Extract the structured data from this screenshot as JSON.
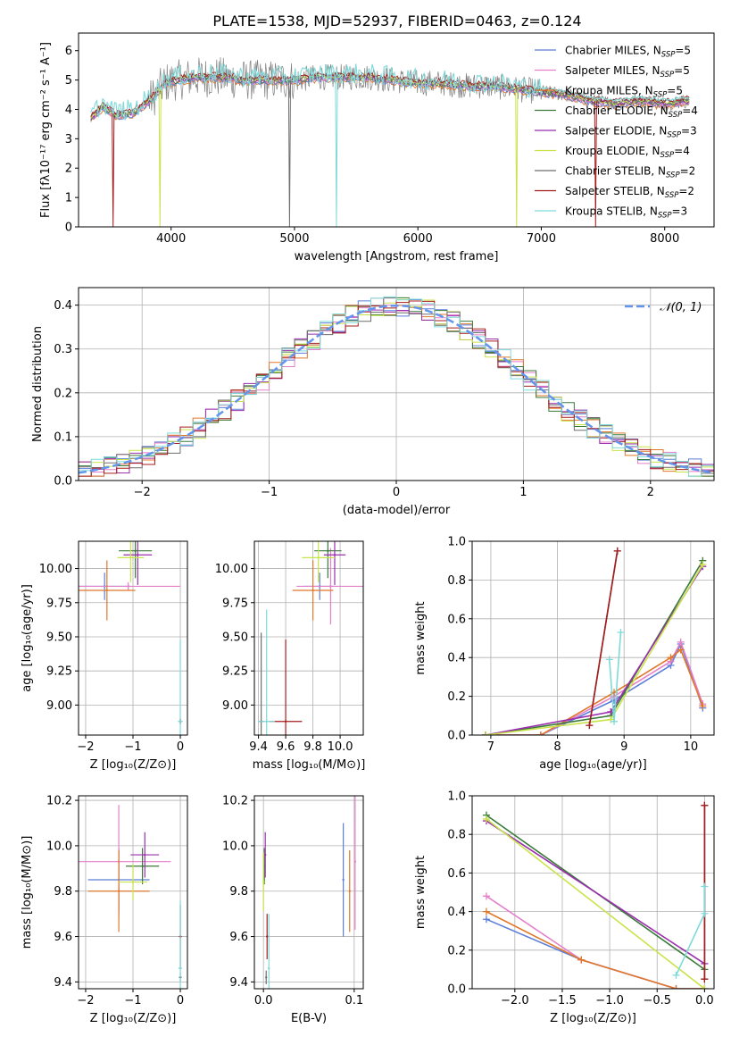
{
  "figure_title": "PLATE=1538, MJD=52937, FIBERID=0463, z=0.124",
  "colors": {
    "Chabrier MILES": "#5b7fd8",
    "Salpeter MILES": "#e57fc9",
    "Kroupa MILES": "#e0782b",
    "Chabrier ELODIE": "#3a7a3a",
    "Salpeter ELODIE": "#9b2fae",
    "Kroupa ELODIE": "#c9e34a",
    "Chabrier STELIB": "#6e6e6e",
    "Salpeter STELIB": "#a51c1c",
    "Kroupa STELIB": "#7fd9d9",
    "gauss": "#6495ed"
  },
  "chart_data": [
    {
      "id": "spectrum",
      "type": "line",
      "xlabel": "wavelength [Angstrom, rest frame]",
      "ylabel": "Flux [fλ10⁻¹⁷ erg cm⁻² s⁻¹ A⁻¹]",
      "xlim": [
        3250,
        8400
      ],
      "ylim": [
        0,
        6.6
      ],
      "xticks": [
        4000,
        5000,
        6000,
        7000,
        8000
      ],
      "yticks": [
        0,
        1,
        2,
        3,
        4,
        5,
        6
      ],
      "grid": false,
      "legend_position": "right",
      "legend": [
        {
          "label": "Chabrier MILES, N",
          "sub": "SSP",
          "n": "=5",
          "model": "Chabrier MILES"
        },
        {
          "label": "Salpeter MILES, N",
          "sub": "SSP",
          "n": "=5",
          "model": "Salpeter MILES"
        },
        {
          "label": "Kroupa MILES, N",
          "sub": "SSP",
          "n": "=5",
          "model": "Kroupa MILES"
        },
        {
          "label": "Chabrier ELODIE, N",
          "sub": "SSP",
          "n": "=4",
          "model": "Chabrier ELODIE"
        },
        {
          "label": "Salpeter ELODIE, N",
          "sub": "SSP",
          "n": "=3",
          "model": "Salpeter ELODIE"
        },
        {
          "label": "Kroupa ELODIE, N",
          "sub": "SSP",
          "n": "=4",
          "model": "Kroupa ELODIE"
        },
        {
          "label": "Chabrier STELIB, N",
          "sub": "SSP",
          "n": "=2",
          "model": "Chabrier STELIB"
        },
        {
          "label": "Salpeter STELIB, N",
          "sub": "SSP",
          "n": "=2",
          "model": "Salpeter STELIB"
        },
        {
          "label": "Kroupa STELIB, N",
          "sub": "SSP",
          "n": "=3",
          "model": "Kroupa STELIB"
        }
      ],
      "continuum": {
        "x": [
          3350,
          3450,
          3550,
          3700,
          3850,
          3950,
          4050,
          4200,
          4400,
          4600,
          4800,
          5000,
          5200,
          5400,
          5600,
          5800,
          6000,
          6200,
          6400,
          6600,
          6800,
          7000,
          7200,
          7400,
          7600,
          7800,
          8000,
          8200
        ],
        "y": [
          3.7,
          4.1,
          3.8,
          3.9,
          4.4,
          4.9,
          5.0,
          5.1,
          5.1,
          5.0,
          5.0,
          5.0,
          5.1,
          5.1,
          5.1,
          5.0,
          4.9,
          4.9,
          4.8,
          4.8,
          4.7,
          4.6,
          4.5,
          4.3,
          4.2,
          4.3,
          4.2,
          4.3
        ]
      },
      "dips": [
        {
          "x": 3530,
          "model": "Salpeter STELIB"
        },
        {
          "x": 3910,
          "model": "Kroupa ELODIE"
        },
        {
          "x": 4960,
          "model": "Chabrier STELIB"
        },
        {
          "x": 5340,
          "model": "Kroupa STELIB"
        },
        {
          "x": 6800,
          "model": "Kroupa ELODIE"
        },
        {
          "x": 7440,
          "model": "Salpeter STELIB"
        }
      ]
    },
    {
      "id": "residual-histogram",
      "type": "histogram",
      "xlabel": "(data-model)/error",
      "ylabel": "Normed distribution",
      "xlim": [
        -2.5,
        2.5
      ],
      "ylim": [
        0,
        0.44
      ],
      "xticks": [
        -2,
        -1,
        0,
        1,
        2
      ],
      "yticks": [
        0.0,
        0.1,
        0.2,
        0.3,
        0.4
      ],
      "grid": true,
      "legend_label": "𝒩(0, 1)",
      "legend_position": "top-right",
      "series_models": [
        "Chabrier MILES",
        "Salpeter MILES",
        "Kroupa MILES",
        "Chabrier ELODIE",
        "Salpeter ELODIE",
        "Kroupa ELODIE",
        "Chabrier STELIB",
        "Salpeter STELIB",
        "Kroupa STELIB"
      ]
    },
    {
      "id": "age-vs-Z",
      "type": "scatter",
      "xlabel": "Z [log₁₀(Z/Z⊙)]",
      "ylabel": "age  [log₁₀(age/yr)]",
      "xlim": [
        -2.15,
        0.15
      ],
      "ylim": [
        8.78,
        10.2
      ],
      "xticks": [
        -2,
        -1,
        0
      ],
      "yticks": [
        9.0,
        9.25,
        9.5,
        9.75,
        10.0
      ],
      "grid": true,
      "points": [
        {
          "model": "Chabrier MILES",
          "x": -1.6,
          "y": 9.87,
          "xerr": 0.55,
          "yerr": 0.1
        },
        {
          "model": "Salpeter MILES",
          "x": -1.1,
          "y": 9.87,
          "xerr": 1.1,
          "yerr": 0.03
        },
        {
          "model": "Kroupa MILES",
          "x": -1.55,
          "y": 9.84,
          "xerr": 0.6,
          "yerr": 0.22
        },
        {
          "model": "Chabrier ELODIE",
          "x": -0.95,
          "y": 10.13,
          "xerr": 0.35,
          "yerr": 0.2
        },
        {
          "model": "Salpeter ELODIE",
          "x": -0.9,
          "y": 10.1,
          "xerr": 0.3,
          "yerr": 0.22
        },
        {
          "model": "Kroupa ELODIE",
          "x": -1.05,
          "y": 10.08,
          "xerr": 0.28,
          "yerr": 0.18
        },
        {
          "model": "Chabrier STELIB",
          "x": 0.0,
          "y": 8.88,
          "xerr": 0.03,
          "yerr": 0.02
        },
        {
          "model": "Salpeter STELIB",
          "x": 0.0,
          "y": 8.88,
          "xerr": 0.03,
          "yerr": 0.02
        },
        {
          "model": "Kroupa STELIB",
          "x": 0.0,
          "y": 8.88,
          "xerr": 0.05,
          "yerr": 0.6
        }
      ]
    },
    {
      "id": "age-vs-mass",
      "type": "scatter",
      "xlabel": "mass [log₁₀(M/M⊙)]",
      "ylabel": "",
      "xlim": [
        9.37,
        10.17
      ],
      "ylim": [
        8.78,
        10.2
      ],
      "xticks": [
        9.4,
        9.6,
        9.8,
        10.0
      ],
      "yticks": [
        9.0,
        9.25,
        9.5,
        9.75,
        10.0
      ],
      "grid": true,
      "points": [
        {
          "model": "Chabrier MILES",
          "x": 9.85,
          "y": 9.87,
          "xerr": 0.12,
          "yerr": 0.1
        },
        {
          "model": "Salpeter MILES",
          "x": 9.93,
          "y": 9.87,
          "xerr": 0.25,
          "yerr": 0.28
        },
        {
          "model": "Kroupa MILES",
          "x": 9.8,
          "y": 9.84,
          "xerr": 0.15,
          "yerr": 0.22
        },
        {
          "model": "Chabrier ELODIE",
          "x": 9.91,
          "y": 10.13,
          "xerr": 0.1,
          "yerr": 0.2
        },
        {
          "model": "Salpeter ELODIE",
          "x": 9.96,
          "y": 10.1,
          "xerr": 0.08,
          "yerr": 0.22
        },
        {
          "model": "Kroupa ELODIE",
          "x": 9.84,
          "y": 10.08,
          "xerr": 0.12,
          "yerr": 0.18
        },
        {
          "model": "Chabrier STELIB",
          "x": 9.42,
          "y": 8.88,
          "xerr": 0.02,
          "yerr": 0.65
        },
        {
          "model": "Salpeter STELIB",
          "x": 9.6,
          "y": 8.88,
          "xerr": 0.12,
          "yerr": 0.6
        },
        {
          "model": "Kroupa STELIB",
          "x": 9.46,
          "y": 8.88,
          "xerr": 0.06,
          "yerr": 0.82
        }
      ]
    },
    {
      "id": "weight-vs-age",
      "type": "line",
      "xlabel": "age  [log₁₀(age/yr)]",
      "ylabel": "mass weight",
      "xlim": [
        6.72,
        10.35
      ],
      "ylim": [
        0,
        1.0
      ],
      "xticks": [
        7,
        8,
        9,
        10
      ],
      "yticks": [
        0.0,
        0.2,
        0.4,
        0.6,
        0.8,
        1.0
      ],
      "grid": true,
      "series": [
        {
          "model": "Chabrier MILES",
          "x": [
            6.92,
            7.75,
            8.85,
            9.7,
            9.85,
            10.18
          ],
          "y": [
            0.0,
            0.0,
            0.18,
            0.36,
            0.47,
            0.14
          ]
        },
        {
          "model": "Salpeter MILES",
          "x": [
            6.92,
            7.75,
            8.85,
            9.7,
            9.85,
            10.18
          ],
          "y": [
            0.0,
            0.0,
            0.2,
            0.38,
            0.48,
            0.16
          ]
        },
        {
          "model": "Kroupa MILES",
          "x": [
            6.92,
            7.75,
            8.85,
            9.7,
            9.85,
            10.18
          ],
          "y": [
            0.0,
            0.0,
            0.22,
            0.4,
            0.44,
            0.15
          ]
        },
        {
          "model": "Chabrier ELODIE",
          "x": [
            6.92,
            8.8,
            10.18
          ],
          "y": [
            0.0,
            0.1,
            0.9
          ]
        },
        {
          "model": "Salpeter ELODIE",
          "x": [
            6.92,
            8.8,
            10.18
          ],
          "y": [
            0.0,
            0.12,
            0.87
          ]
        },
        {
          "model": "Kroupa ELODIE",
          "x": [
            6.92,
            8.8,
            10.18
          ],
          "y": [
            0.0,
            0.08,
            0.88
          ]
        },
        {
          "model": "Chabrier STELIB",
          "x": [
            8.48,
            8.9
          ],
          "y": [
            0.05,
            0.95
          ]
        },
        {
          "model": "Salpeter STELIB",
          "x": [
            8.48,
            8.9
          ],
          "y": [
            0.05,
            0.95
          ]
        },
        {
          "model": "Kroupa STELIB",
          "x": [
            8.78,
            8.85,
            8.95
          ],
          "y": [
            0.39,
            0.07,
            0.53
          ]
        }
      ]
    },
    {
      "id": "mass-vs-Z",
      "type": "scatter",
      "xlabel": "Z [log₁₀(Z/Z⊙)]",
      "ylabel": "mass [log₁₀(M/M⊙)]",
      "xlim": [
        -2.15,
        0.15
      ],
      "ylim": [
        9.37,
        10.22
      ],
      "xticks": [
        -2,
        -1,
        0
      ],
      "yticks": [
        9.4,
        9.6,
        9.8,
        10.0,
        10.2
      ],
      "grid": true,
      "points": [
        {
          "model": "Chabrier MILES",
          "x": -1.3,
          "y": 9.85,
          "xerr": 0.65,
          "yerr": 0.14
        },
        {
          "model": "Salpeter MILES",
          "x": -1.3,
          "y": 9.93,
          "xerr": 1.1,
          "yerr": 0.25
        },
        {
          "model": "Kroupa MILES",
          "x": -1.3,
          "y": 9.8,
          "xerr": 0.65,
          "yerr": 0.18
        },
        {
          "model": "Chabrier ELODIE",
          "x": -0.8,
          "y": 9.91,
          "xerr": 0.35,
          "yerr": 0.08
        },
        {
          "model": "Salpeter ELODIE",
          "x": -0.75,
          "y": 9.96,
          "xerr": 0.3,
          "yerr": 0.1
        },
        {
          "model": "Kroupa ELODIE",
          "x": -1.0,
          "y": 9.84,
          "xerr": 0.3,
          "yerr": 0.08
        },
        {
          "model": "Chabrier STELIB",
          "x": 0.0,
          "y": 9.42,
          "xerr": 0.03,
          "yerr": 0.02
        },
        {
          "model": "Salpeter STELIB",
          "x": 0.0,
          "y": 9.6,
          "xerr": 0.03,
          "yerr": 0.14
        },
        {
          "model": "Kroupa STELIB",
          "x": 0.0,
          "y": 9.46,
          "xerr": 0.04,
          "yerr": 0.3
        }
      ]
    },
    {
      "id": "mass-vs-EBV",
      "type": "scatter",
      "xlabel": "E(B-V)",
      "ylabel": "",
      "xlim": [
        -0.01,
        0.11
      ],
      "ylim": [
        9.37,
        10.22
      ],
      "xticks": [
        0.0,
        0.1
      ],
      "yticks": [
        9.4,
        9.6,
        9.8,
        10.0,
        10.2
      ],
      "grid": true,
      "points": [
        {
          "model": "Chabrier MILES",
          "x": 0.088,
          "y": 9.85,
          "xerr": 0,
          "yerr": 0.25
        },
        {
          "model": "Salpeter MILES",
          "x": 0.101,
          "y": 9.93,
          "xerr": 0,
          "yerr": 0.3
        },
        {
          "model": "Kroupa MILES",
          "x": 0.095,
          "y": 9.8,
          "xerr": 0,
          "yerr": 0.18
        },
        {
          "model": "Chabrier ELODIE",
          "x": 0.001,
          "y": 9.91,
          "xerr": 0,
          "yerr": 0.08
        },
        {
          "model": "Salpeter ELODIE",
          "x": 0.002,
          "y": 9.96,
          "xerr": 0,
          "yerr": 0.1
        },
        {
          "model": "Kroupa ELODIE",
          "x": 0.0,
          "y": 9.84,
          "xerr": 0,
          "yerr": 0.13
        },
        {
          "model": "Chabrier STELIB",
          "x": 0.003,
          "y": 9.42,
          "xerr": 0,
          "yerr": 0.03
        },
        {
          "model": "Salpeter STELIB",
          "x": 0.004,
          "y": 9.6,
          "xerr": 0,
          "yerr": 0.1
        },
        {
          "model": "Kroupa STELIB",
          "x": 0.006,
          "y": 9.46,
          "xerr": 0,
          "yerr": 0.24
        }
      ]
    },
    {
      "id": "weight-vs-Z",
      "type": "line",
      "xlabel": "Z [log₁₀(Z/Z⊙)]",
      "ylabel": "mass weight",
      "xlim": [
        -2.45,
        0.1
      ],
      "ylim": [
        0,
        1.0
      ],
      "xticks": [
        -2.0,
        -1.5,
        -1.0,
        -0.5,
        0.0
      ],
      "yticks": [
        0.0,
        0.2,
        0.4,
        0.6,
        0.8,
        1.0
      ],
      "grid": true,
      "series": [
        {
          "model": "Chabrier MILES",
          "x": [
            -2.3,
            -1.3,
            -0.3,
            0.0
          ],
          "y": [
            0.36,
            0.15,
            0.0,
            0.0
          ]
        },
        {
          "model": "Salpeter MILES",
          "x": [
            -2.3,
            -1.3,
            -0.3,
            0.0
          ],
          "y": [
            0.48,
            0.15,
            0.0,
            0.0
          ]
        },
        {
          "model": "Kroupa MILES",
          "x": [
            -2.3,
            -1.3,
            -0.3,
            0.0
          ],
          "y": [
            0.4,
            0.15,
            0.0,
            0.0
          ]
        },
        {
          "model": "Chabrier ELODIE",
          "x": [
            -2.3,
            0.0
          ],
          "y": [
            0.9,
            0.1
          ]
        },
        {
          "model": "Salpeter ELODIE",
          "x": [
            -2.3,
            0.0
          ],
          "y": [
            0.87,
            0.13
          ]
        },
        {
          "model": "Kroupa ELODIE",
          "x": [
            -2.3,
            0.0
          ],
          "y": [
            0.88,
            0.0
          ]
        },
        {
          "model": "Chabrier STELIB",
          "x": [
            0.0,
            0.0
          ],
          "y": [
            0.05,
            0.95
          ]
        },
        {
          "model": "Salpeter STELIB",
          "x": [
            0.0,
            0.0
          ],
          "y": [
            0.05,
            0.95
          ]
        },
        {
          "model": "Kroupa STELIB",
          "x": [
            -0.3,
            0.0,
            0.0
          ],
          "y": [
            0.07,
            0.39,
            0.53
          ]
        }
      ]
    }
  ]
}
